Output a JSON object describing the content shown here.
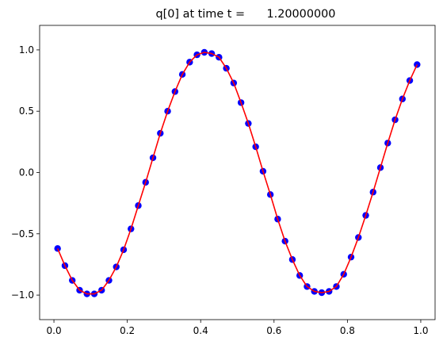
{
  "chart_data": {
    "type": "scatter",
    "title": "q[0] at time t =      1.20000000",
    "xlabel": "",
    "ylabel": "",
    "xlim": [
      -0.039,
      1.039
    ],
    "ylim": [
      -1.2,
      1.2
    ],
    "grid": false,
    "xticks": [
      0.0,
      0.2,
      0.4,
      0.6,
      0.8,
      1.0
    ],
    "xtick_labels": [
      "0.0",
      "0.2",
      "0.4",
      "0.6",
      "0.8",
      "1.0"
    ],
    "yticks": [
      -1.0,
      -0.5,
      0.0,
      0.5,
      1.0
    ],
    "ytick_labels": [
      "−1.0",
      "−0.5",
      "0.0",
      "0.5",
      "1.0"
    ],
    "series": [
      {
        "kind": "points",
        "color": "#0000ff",
        "x": [
          0.01,
          0.03,
          0.05,
          0.07,
          0.09,
          0.11,
          0.13,
          0.15,
          0.17,
          0.19,
          0.21,
          0.23,
          0.25,
          0.27,
          0.29,
          0.31,
          0.33,
          0.35,
          0.37,
          0.39,
          0.41,
          0.43,
          0.45,
          0.47,
          0.49,
          0.51,
          0.53,
          0.55,
          0.57,
          0.59,
          0.61,
          0.63,
          0.65,
          0.67,
          0.69,
          0.71,
          0.73,
          0.75,
          0.77,
          0.79,
          0.81,
          0.83,
          0.85,
          0.87,
          0.89,
          0.91,
          0.93,
          0.95,
          0.97,
          0.99
        ],
        "y": [
          -0.62,
          -0.76,
          -0.88,
          -0.96,
          -0.99,
          -0.99,
          -0.96,
          -0.88,
          -0.77,
          -0.63,
          -0.46,
          -0.27,
          -0.08,
          0.12,
          0.32,
          0.5,
          0.66,
          0.8,
          0.9,
          0.96,
          0.98,
          0.97,
          0.94,
          0.85,
          0.73,
          0.57,
          0.4,
          0.21,
          0.01,
          -0.18,
          -0.38,
          -0.56,
          -0.71,
          -0.84,
          -0.93,
          -0.97,
          -0.98,
          -0.97,
          -0.93,
          -0.83,
          -0.69,
          -0.53,
          -0.35,
          -0.16,
          0.04,
          0.24,
          0.43,
          0.6,
          0.75,
          0.88
        ]
      },
      {
        "kind": "line",
        "color": "#ff0000",
        "x": [
          0.01,
          0.03,
          0.05,
          0.07,
          0.09,
          0.11,
          0.13,
          0.15,
          0.17,
          0.19,
          0.21,
          0.23,
          0.25,
          0.27,
          0.29,
          0.31,
          0.33,
          0.35,
          0.37,
          0.39,
          0.41,
          0.43,
          0.45,
          0.47,
          0.49,
          0.51,
          0.53,
          0.55,
          0.57,
          0.59,
          0.61,
          0.63,
          0.65,
          0.67,
          0.69,
          0.71,
          0.73,
          0.75,
          0.77,
          0.79,
          0.81,
          0.83,
          0.85,
          0.87,
          0.89,
          0.91,
          0.93,
          0.95,
          0.97,
          0.99
        ],
        "y": [
          -0.62,
          -0.76,
          -0.88,
          -0.96,
          -0.99,
          -0.99,
          -0.96,
          -0.88,
          -0.77,
          -0.63,
          -0.46,
          -0.27,
          -0.08,
          0.12,
          0.32,
          0.5,
          0.66,
          0.8,
          0.9,
          0.96,
          0.98,
          0.97,
          0.94,
          0.85,
          0.73,
          0.57,
          0.4,
          0.21,
          0.01,
          -0.18,
          -0.38,
          -0.56,
          -0.71,
          -0.84,
          -0.93,
          -0.97,
          -0.98,
          -0.97,
          -0.93,
          -0.83,
          -0.69,
          -0.53,
          -0.35,
          -0.16,
          0.04,
          0.24,
          0.43,
          0.6,
          0.75,
          0.88
        ]
      }
    ]
  }
}
